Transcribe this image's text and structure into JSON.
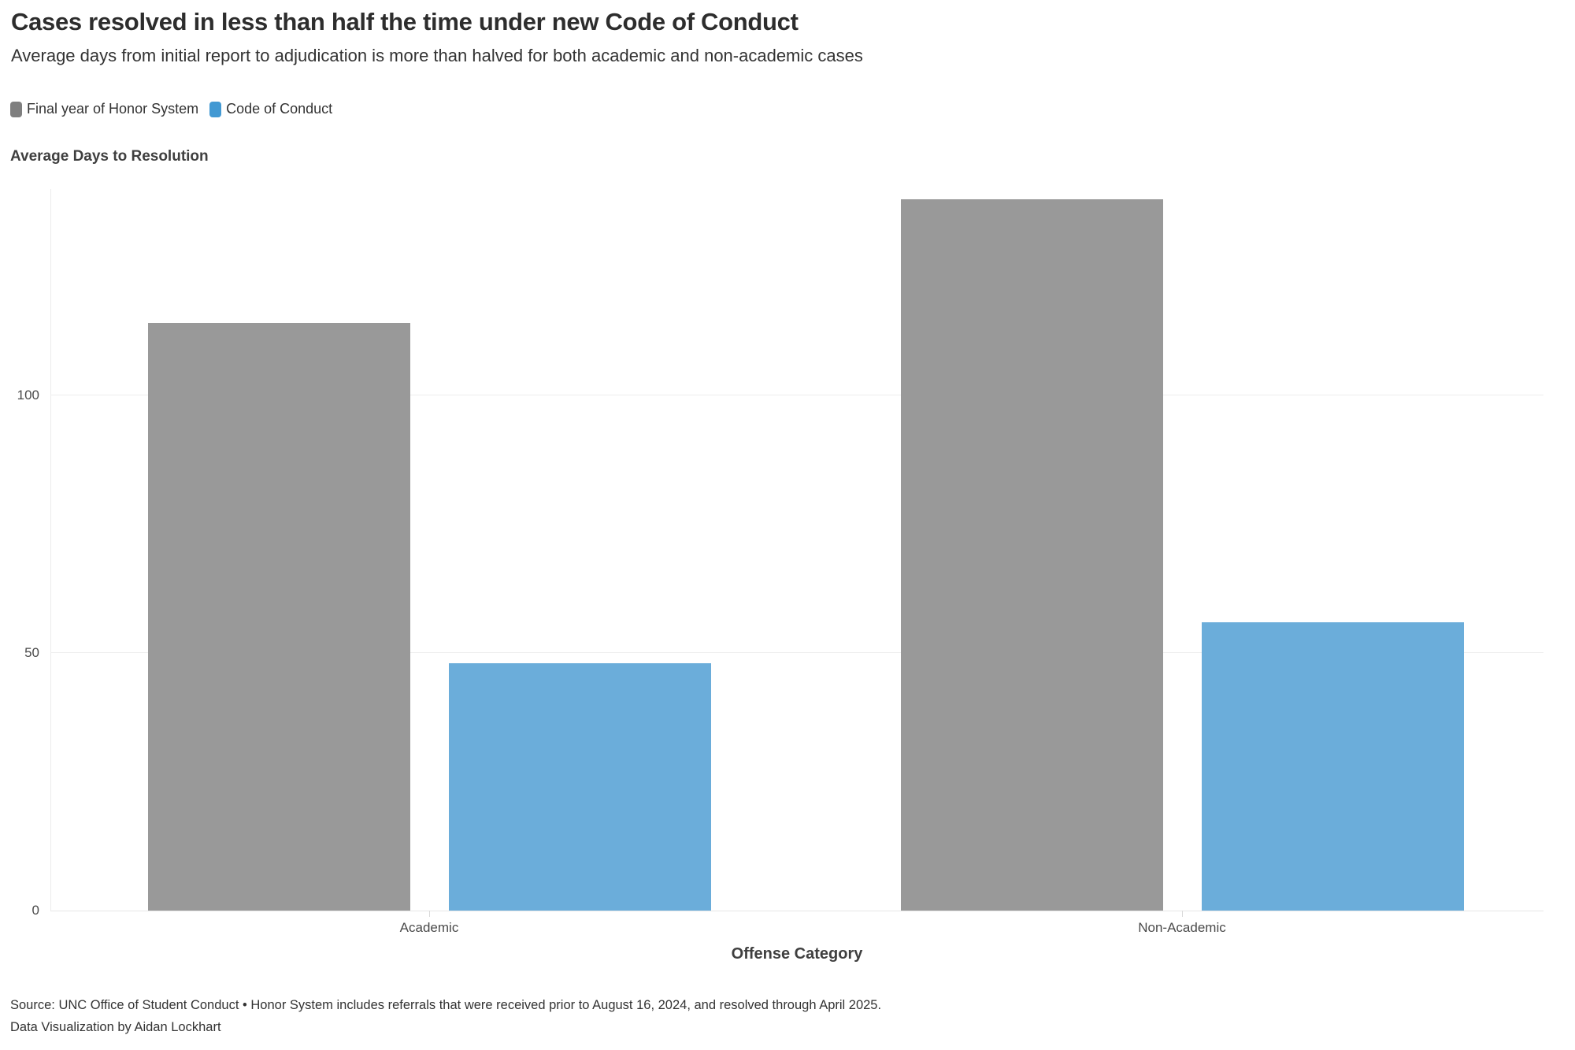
{
  "header": {
    "title": "Cases resolved in less than half the time under new Code of Conduct",
    "subtitle": "Average days from initial report to adjudication is more than halved for both academic and non-academic cases"
  },
  "legend": {
    "items": [
      {
        "label": "Final year of Honor System",
        "color": "#7f7f7f"
      },
      {
        "label": "Code of Conduct",
        "color": "#4299d3"
      }
    ]
  },
  "chart_data": {
    "type": "bar",
    "title": "Average Days to Resolution",
    "xlabel": "Offense Category",
    "ylabel": "Average Days to Resolution",
    "categories": [
      "Academic",
      "Non-Academic"
    ],
    "series": [
      {
        "name": "Final year of Honor System",
        "color": "#999999",
        "values": [
          114,
          138
        ]
      },
      {
        "name": "Code of Conduct",
        "color": "#6badda",
        "values": [
          48,
          56
        ]
      }
    ],
    "yticks": [
      0,
      50,
      100
    ],
    "ylim": [
      0,
      140
    ],
    "grid": true,
    "legend_position": "top-left"
  },
  "footer": {
    "source": "Source: UNC Office of Student Conduct • Honor System includes referrals that were received prior to August 16, 2024, and resolved through April 2025.",
    "credit": "Data Visualization by Aidan Lockhart"
  }
}
